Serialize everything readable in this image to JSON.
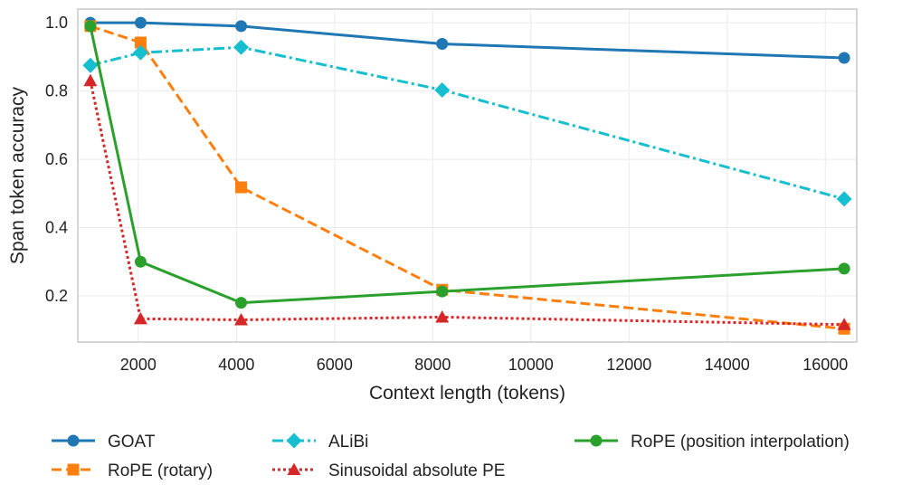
{
  "chart_data": {
    "type": "line",
    "title": "",
    "xlabel": "Context length (tokens)",
    "ylabel": "Span token accuracy",
    "xlim": [
      768,
      16640
    ],
    "ylim": [
      0.065,
      1.04
    ],
    "xticks": [
      2000,
      4000,
      6000,
      8000,
      10000,
      12000,
      14000,
      16000
    ],
    "xtick_labels": [
      "2000",
      "4000",
      "6000",
      "8000",
      "10000",
      "12000",
      "14000",
      "16000"
    ],
    "yticks": [
      0.2,
      0.4,
      0.6,
      0.8,
      1.0
    ],
    "ytick_labels": [
      "0.2",
      "0.4",
      "0.6",
      "0.8",
      "1.0"
    ],
    "grid": true,
    "legend_position": "bottom, below axes, 3 columns",
    "x": [
      1024,
      2048,
      4096,
      8192,
      16384
    ],
    "series": [
      {
        "name": "GOAT",
        "values": [
          1.0,
          1.0,
          0.99,
          0.938,
          0.897
        ],
        "color": "#1f77b4",
        "linestyle": "solid",
        "marker": "circle"
      },
      {
        "name": "RoPE (rotary)",
        "values": [
          0.99,
          0.942,
          0.518,
          0.218,
          0.104
        ],
        "color": "#ff7f0e",
        "linestyle": "dashed",
        "marker": "square"
      },
      {
        "name": "ALiBi",
        "values": [
          0.875,
          0.912,
          0.928,
          0.803,
          0.484
        ],
        "color": "#17becf",
        "linestyle": "dashdot",
        "marker": "diamond"
      },
      {
        "name": "Sinusoidal absolute PE",
        "values": [
          0.83,
          0.133,
          0.13,
          0.138,
          0.116
        ],
        "color": "#d62728",
        "linestyle": "dotted",
        "marker": "triangle"
      },
      {
        "name": "RoPE (position interpolation)",
        "values": [
          0.99,
          0.3,
          0.18,
          0.213,
          0.28
        ],
        "color": "#2ca02c",
        "linestyle": "solid",
        "marker": "circle"
      }
    ]
  }
}
